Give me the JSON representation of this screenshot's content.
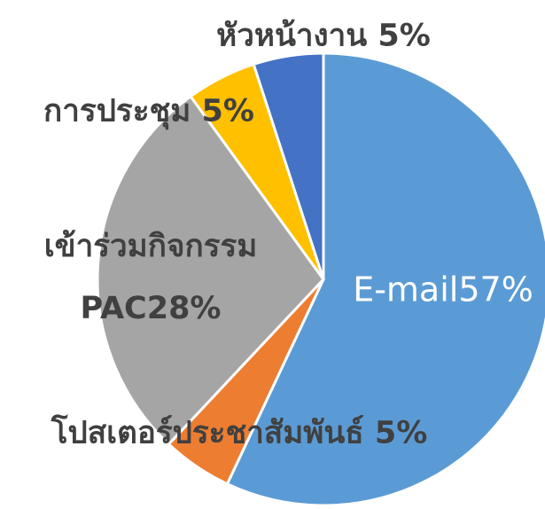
{
  "chart_data": {
    "type": "pie",
    "categories": [
      "E-mail",
      "โปสเตอร์ประชาสัมพันธ์",
      "เข้าร่วมกิจกรรม PAC",
      "การประชุม",
      "หัวหน้างาน"
    ],
    "values": [
      57,
      5,
      28,
      5,
      5
    ],
    "value_labels": [
      "57%",
      "5%",
      "28%",
      "5%",
      "5%"
    ],
    "colors": [
      "#5b9bd5",
      "#ed7d31",
      "#a5a5a5",
      "#ffc000",
      "#4472c4"
    ]
  }
}
